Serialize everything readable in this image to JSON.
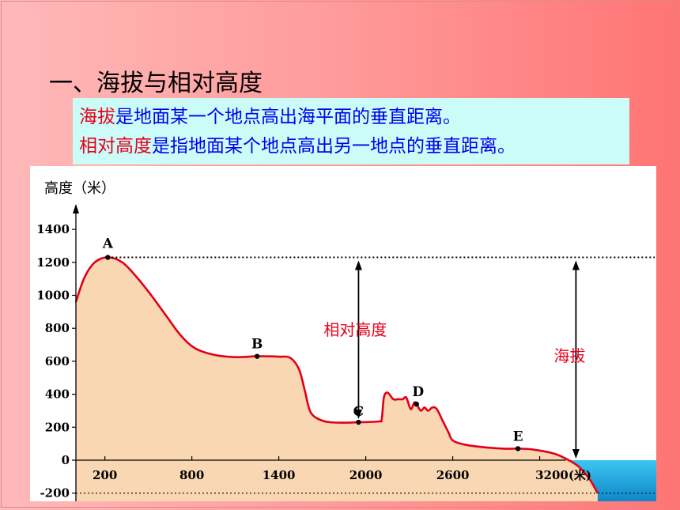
{
  "title": "一、海拔与相对高度",
  "definitions": [
    {
      "term": "海拔",
      "text": "是地面某一个地点高出海平面的垂直距离。"
    },
    {
      "term": "相对高度",
      "text": "是指地面某个地点高出另一地点的垂直距离。"
    }
  ],
  "chart_data": {
    "type": "line",
    "ylabel": "高度（米）",
    "x_tick_labels": [
      "200",
      "800",
      "1400",
      "2000",
      "2600",
      "3200(米)"
    ],
    "y_tick_labels": [
      "1400",
      "1200",
      "1000",
      "800",
      "600",
      "400",
      "200",
      "0",
      "-200"
    ],
    "ylim": [
      -200,
      1450
    ],
    "xlim": [
      0,
      3650
    ],
    "points": [
      {
        "label": "A",
        "x": 220,
        "y": 1230
      },
      {
        "label": "B",
        "x": 1250,
        "y": 630
      },
      {
        "label": "C",
        "x": 1950,
        "y": 230
      },
      {
        "label": "D",
        "x": 2350,
        "y": 340
      },
      {
        "label": "E",
        "x": 3050,
        "y": 70
      }
    ],
    "profile": [
      [
        0,
        960
      ],
      [
        60,
        1110
      ],
      [
        130,
        1200
      ],
      [
        220,
        1230
      ],
      [
        320,
        1200
      ],
      [
        420,
        1110
      ],
      [
        520,
        1000
      ],
      [
        620,
        880
      ],
      [
        720,
        760
      ],
      [
        820,
        680
      ],
      [
        950,
        640
      ],
      [
        1100,
        625
      ],
      [
        1250,
        630
      ],
      [
        1400,
        628
      ],
      [
        1480,
        620
      ],
      [
        1540,
        550
      ],
      [
        1580,
        420
      ],
      [
        1620,
        290
      ],
      [
        1700,
        240
      ],
      [
        1800,
        228
      ],
      [
        1950,
        230
      ],
      [
        2090,
        235
      ],
      [
        2110,
        250
      ],
      [
        2125,
        380
      ],
      [
        2150,
        410
      ],
      [
        2190,
        370
      ],
      [
        2220,
        370
      ],
      [
        2255,
        370
      ],
      [
        2280,
        380
      ],
      [
        2310,
        310
      ],
      [
        2335,
        350
      ],
      [
        2350,
        340
      ],
      [
        2380,
        300
      ],
      [
        2405,
        320
      ],
      [
        2430,
        300
      ],
      [
        2460,
        320
      ],
      [
        2490,
        310
      ],
      [
        2530,
        240
      ],
      [
        2570,
        170
      ],
      [
        2600,
        120
      ],
      [
        2680,
        95
      ],
      [
        2800,
        80
      ],
      [
        2950,
        70
      ],
      [
        3050,
        70
      ],
      [
        3150,
        65
      ],
      [
        3300,
        40
      ],
      [
        3400,
        0
      ],
      [
        3470,
        -40
      ],
      [
        3540,
        -110
      ],
      [
        3600,
        -200
      ]
    ],
    "sea_level": 0,
    "annotations": [
      {
        "text": "相对高度",
        "x": 1950,
        "from": 230,
        "to": 1230
      },
      {
        "text": "海拔",
        "x": 3450,
        "from": 0,
        "to": 1230
      }
    ],
    "colors": {
      "land_fill": "#f9d7b2",
      "profile_line": "#e10018",
      "sea": "#1fb3e8",
      "label": "#e8001c"
    }
  }
}
